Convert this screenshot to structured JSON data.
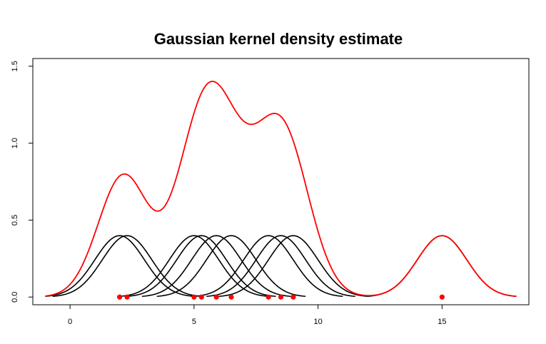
{
  "chart_data": {
    "type": "line",
    "title": "Gaussian kernel density estimate",
    "xlabel": "",
    "ylabel": "",
    "xlim": [
      -1.5,
      18.5
    ],
    "ylim": [
      -0.05,
      1.55
    ],
    "x_ticks": [
      0,
      5,
      10,
      15
    ],
    "y_ticks": [
      0.0,
      0.5,
      1.0,
      1.5
    ],
    "x_tick_labels": [
      "0",
      "5",
      "10",
      "15"
    ],
    "y_tick_labels": [
      "0.0",
      "0.5",
      "1.0",
      "1.5"
    ],
    "bandwidth": 1,
    "data_points": [
      2.0,
      2.3,
      5.0,
      5.3,
      5.9,
      6.5,
      8.0,
      8.5,
      9.0,
      15.0
    ],
    "series": [
      {
        "kind": "kernel",
        "center": 2.0,
        "range": [
          -1.0,
          5.0
        ]
      },
      {
        "kind": "kernel",
        "center": 2.3,
        "range": [
          -0.7,
          5.3
        ]
      },
      {
        "kind": "kernel",
        "center": 5.0,
        "range": [
          2.0,
          8.0
        ]
      },
      {
        "kind": "kernel",
        "center": 5.3,
        "range": [
          2.3,
          8.3
        ]
      },
      {
        "kind": "kernel",
        "center": 5.9,
        "range": [
          2.9,
          8.9
        ]
      },
      {
        "kind": "kernel",
        "center": 6.5,
        "range": [
          3.5,
          9.5
        ]
      },
      {
        "kind": "kernel",
        "center": 8.0,
        "range": [
          5.0,
          11.0
        ]
      },
      {
        "kind": "kernel",
        "center": 8.5,
        "range": [
          5.5,
          11.5
        ]
      },
      {
        "kind": "kernel",
        "center": 9.0,
        "range": [
          6.0,
          12.0
        ]
      },
      {
        "kind": "kernel",
        "center": 15.0,
        "range": [
          12.0,
          18.0
        ]
      },
      {
        "kind": "density-sum",
        "range": [
          -1.0,
          18.0
        ]
      }
    ],
    "colors": {
      "kernel": "#000000",
      "density": "#ff0000",
      "points": "#ff0000",
      "axis": "#000000"
    },
    "grid": false,
    "legend": "none"
  }
}
